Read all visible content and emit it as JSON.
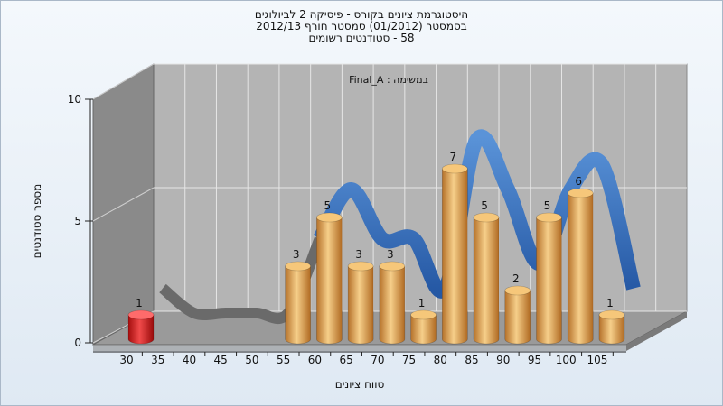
{
  "chart_data": {
    "type": "bar",
    "title_lines": [
      "היסטוגרמת ציונים בקורס - פיסיקה 2 לביולוגים",
      "בסמסטר (01/2012) סמסטר חורף 2012/13",
      "58 - סטודנטים רשומים"
    ],
    "subtitle": "במשימה : Final_A",
    "xlabel": "טווח ציונים",
    "ylabel": "מספר סטודנטים",
    "ylim": [
      0,
      10
    ],
    "yticks": [
      0,
      5,
      10
    ],
    "categories": [
      "30",
      "35",
      "40",
      "45",
      "50",
      "55",
      "60",
      "65",
      "70",
      "75",
      "80",
      "85",
      "90",
      "95",
      "100",
      "105"
    ],
    "values": [
      1,
      0,
      0,
      0,
      0,
      3,
      5,
      3,
      3,
      1,
      7,
      5,
      2,
      5,
      6,
      1
    ],
    "bar_colors": {
      "fail": "#d81e1e",
      "pass": "#e3a24b"
    },
    "ribbon_colors": {
      "gray": "#6a6a6a",
      "blue": "#2f6fbf"
    },
    "grid": true
  }
}
